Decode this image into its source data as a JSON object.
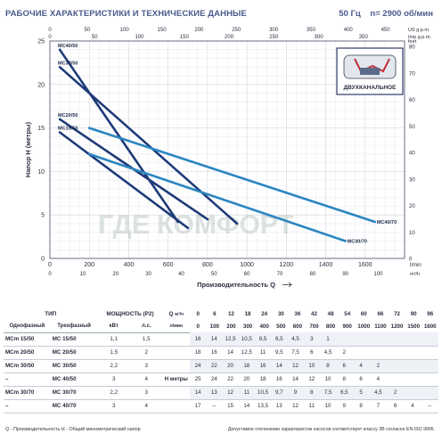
{
  "header": {
    "title": "РАБОЧИЕ ХАРАКТЕРИСТИКИ И ТЕХНИЧЕСКИЕ ДАННЫЕ",
    "freq": "50 Гц",
    "speed": "n= 2900 об/мин"
  },
  "inset": {
    "label": "ДВУХКАНАЛЬНОЕ"
  },
  "watermark": "ГДЕ КОМФОРТ",
  "chart_data": {
    "type": "line",
    "ylabel": "Напор H (метры)",
    "xlabel": "Производительность Q",
    "x_unit": "l/min",
    "x_unit2": "m³/h",
    "top_unit1": "US g.p.m.",
    "top_unit2": "Imp g.p.m.",
    "right_unit": "feet",
    "xlim": [
      0,
      1800
    ],
    "ylim": [
      0,
      25
    ],
    "x_ticks": [
      0,
      200,
      400,
      600,
      800,
      1000,
      1200,
      1400,
      1600
    ],
    "y_ticks": [
      0,
      5,
      10,
      15,
      20,
      25
    ],
    "m3h_ticks": [
      0,
      10,
      20,
      30,
      40,
      50,
      60,
      70,
      80,
      90,
      100
    ],
    "usgpm_ticks": [
      0,
      50,
      100,
      150,
      200,
      250,
      300,
      350,
      400,
      450
    ],
    "impgpm_ticks": [
      0,
      50,
      100,
      150,
      200,
      250,
      300,
      350
    ],
    "feet_ticks": [
      0,
      10,
      20,
      30,
      40,
      50,
      60,
      70,
      80
    ],
    "grid": true,
    "series": [
      {
        "name": "MC40/50",
        "color": "#1e3a78",
        "x": [
          50,
          650
        ],
        "y": [
          24,
          4.2
        ]
      },
      {
        "name": "MC30/50",
        "color": "#1e3a78",
        "x": [
          50,
          950
        ],
        "y": [
          22,
          4
        ]
      },
      {
        "name": "MC20/50",
        "color": "#1e3a78",
        "x": [
          50,
          800
        ],
        "y": [
          16,
          4.5
        ]
      },
      {
        "name": "MC15/50",
        "color": "#1e3a78",
        "x": [
          50,
          700
        ],
        "y": [
          14.5,
          3.5
        ]
      },
      {
        "name": "MC40/70",
        "color": "#2a86c0",
        "x": [
          200,
          1650
        ],
        "y": [
          15,
          4.2
        ]
      },
      {
        "name": "MC30/70",
        "color": "#2a86c0",
        "x": [
          200,
          1500
        ],
        "y": [
          12,
          2
        ]
      }
    ]
  },
  "table": {
    "h_type": "ТИП",
    "h_power": "МОЩНОСТЬ (P2)",
    "h_q": "Q",
    "h_q_u1": "м³/ч",
    "h_q_u2": "л/мин",
    "h_single": "Однофазный",
    "h_three": "Трехфазный",
    "h_kw": "кВт",
    "h_hp": "л.с.",
    "h_h": "H",
    "h_h_u": "метры",
    "q_m3h": [
      "0",
      "6",
      "12",
      "18",
      "24",
      "30",
      "36",
      "42",
      "48",
      "54",
      "60",
      "66",
      "72",
      "90",
      "96"
    ],
    "q_lmin": [
      "0",
      "100",
      "200",
      "300",
      "400",
      "500",
      "600",
      "700",
      "800",
      "900",
      "1000",
      "1100",
      "1200",
      "1500",
      "1600"
    ],
    "rows": [
      {
        "single": "MCm 15/50",
        "three": "MC 15/50",
        "kw": "1,1",
        "hp": "1,5",
        "h": [
          "16",
          "14",
          "12,5",
          "10,5",
          "8,5",
          "6,5",
          "4,5",
          "3",
          "1",
          "",
          "",
          "",
          "",
          "",
          ""
        ]
      },
      {
        "single": "MCm 20/50",
        "three": "MC 20/50",
        "kw": "1,5",
        "hp": "2",
        "h": [
          "18",
          "16",
          "14",
          "12,5",
          "11",
          "9,5",
          "7,5",
          "6",
          "4,5",
          "2",
          "",
          "",
          "",
          "",
          ""
        ]
      },
      {
        "single": "MCm 30/50",
        "three": "MC 30/50",
        "kw": "2,2",
        "hp": "3",
        "h": [
          "24",
          "22",
          "20",
          "18",
          "16",
          "14",
          "12",
          "10",
          "8",
          "6",
          "4",
          "2",
          "",
          "",
          ""
        ]
      },
      {
        "single": "–",
        "three": "MC 40/50",
        "kw": "3",
        "hp": "4",
        "h": [
          "25",
          "24",
          "22",
          "20",
          "18",
          "16",
          "14",
          "12",
          "10",
          "8",
          "6",
          "4",
          "",
          "",
          ""
        ]
      },
      {
        "single": "MCm 30/70",
        "three": "MC 30/70",
        "kw": "2,2",
        "hp": "3",
        "h": [
          "14",
          "13",
          "12",
          "11",
          "10,5",
          "9,7",
          "9",
          "8",
          "7,5",
          "6,5",
          "5",
          "4,5",
          "2",
          "",
          ""
        ]
      },
      {
        "single": "–",
        "three": "MC 40/70",
        "kw": "3",
        "hp": "4",
        "h": [
          "17",
          "–",
          "15",
          "14",
          "13,5",
          "13",
          "12",
          "11",
          "10",
          "9",
          "8",
          "7",
          "6",
          "4",
          "–"
        ]
      }
    ]
  },
  "footer": {
    "legend": "Q - Производительность   H - Общий манометрический напор",
    "note": "Допустимое отклонение характеристик насосов соответствует классу 3B согласно EN ISO 9906."
  }
}
